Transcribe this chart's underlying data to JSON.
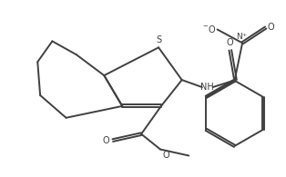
{
  "bg_color": "#ffffff",
  "bond_color": "#404040",
  "text_color": "#404040",
  "line_width": 1.4,
  "font_size": 7.0,
  "xlim": [
    0,
    10
  ],
  "ylim": [
    0,
    6.5
  ]
}
